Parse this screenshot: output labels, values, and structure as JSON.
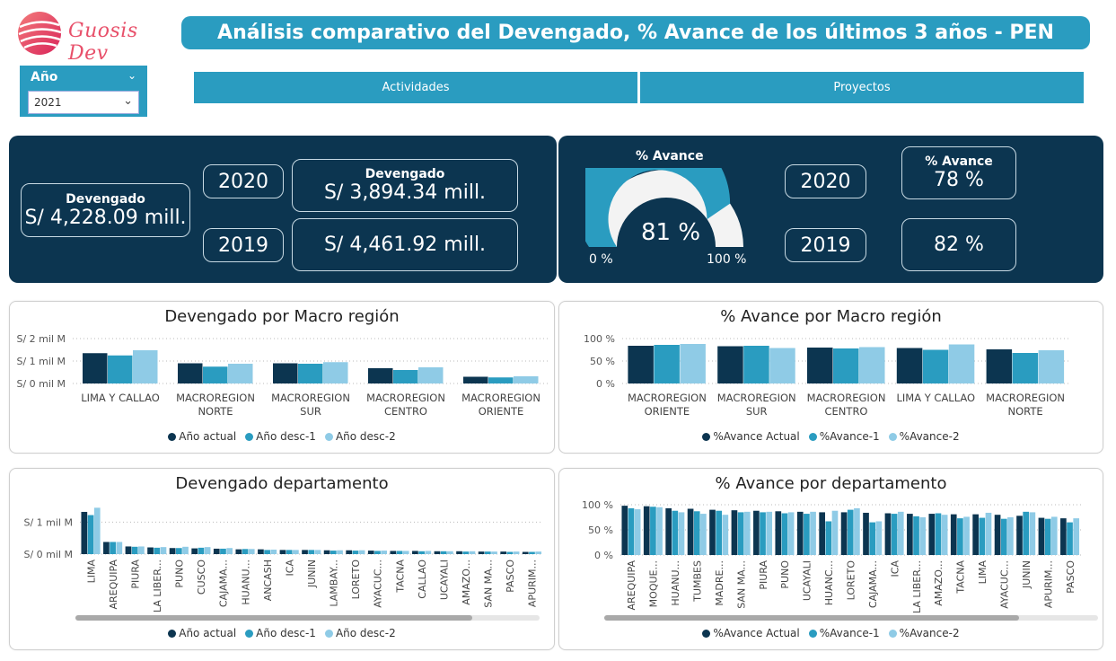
{
  "brand": {
    "name": "Guosis Dev"
  },
  "header": {
    "title": "Análisis comparativo del Devengado, % Avance de los últimos 3 años - PEN"
  },
  "slicer": {
    "label": "Año",
    "value": "2021"
  },
  "nav": {
    "actividades": "Actividades",
    "proyectos": "Proyectos"
  },
  "kpi_devengado": {
    "label": "Devengado",
    "current": "S/ 4,228.09 mill.",
    "y1_label": "2020",
    "y2_label": "2019",
    "y1_title": "Devengado",
    "y1_value": "S/ 3,894.34 mill.",
    "y2_value": "S/ 4,461.92 mill."
  },
  "kpi_avance": {
    "gauge_title": "% Avance",
    "gauge_value": "81 %",
    "gauge_fraction": 0.81,
    "gauge_min": "0 %",
    "gauge_max": "100 %",
    "y1_label": "2020",
    "y2_label": "2019",
    "y1_title": "% Avance",
    "y1_value": "78 %",
    "y2_value": "82 %"
  },
  "colors": {
    "actual": "#0c3550",
    "desc1": "#2a9cc0",
    "desc2": "#8fcbe6",
    "dark": "#0c3550",
    "accent": "#2a9cc0"
  },
  "charts": {
    "dev_macro": {
      "title": "Devengado por Macro región",
      "legend": [
        "Año actual",
        "Año desc-1",
        "Año desc-2"
      ],
      "yticks": [
        "S/ 2 mil M",
        "S/ 1 mil M",
        "S/ 0 mil M"
      ]
    },
    "av_macro": {
      "title": "% Avance por Macro región",
      "legend": [
        "%Avance Actual",
        "%Avance-1",
        "%Avance-2"
      ],
      "yticks": [
        "100 %",
        "50 %",
        "0 %"
      ]
    },
    "dev_depto": {
      "title": "Devengado departamento",
      "legend": [
        "Año actual",
        "Año desc-1",
        "Año desc-2"
      ],
      "yticks": [
        "S/ 1 mil M",
        "S/ 0 mil M"
      ]
    },
    "av_depto": {
      "title": "% Avance por departamento",
      "legend": [
        "%Avance Actual",
        "%Avance-1",
        "%Avance-2"
      ],
      "yticks": [
        "100 %",
        "50 %",
        "0 %"
      ]
    }
  },
  "chart_data": [
    {
      "type": "bar",
      "title": "Devengado por Macro región",
      "categories": [
        "LIMA Y CALLAO",
        "MACROREGION NORTE",
        "MACROREGION SUR",
        "MACROREGION CENTRO",
        "MACROREGION ORIENTE"
      ],
      "series": [
        {
          "name": "Año actual",
          "values": [
            1.35,
            0.9,
            0.9,
            0.68,
            0.3
          ]
        },
        {
          "name": "Año desc-1",
          "values": [
            1.25,
            0.75,
            0.88,
            0.6,
            0.27
          ]
        },
        {
          "name": "Año desc-2",
          "values": [
            1.48,
            0.88,
            0.95,
            0.72,
            0.32
          ]
        }
      ],
      "ylim": [
        0,
        2
      ]
    },
    {
      "type": "bar",
      "title": "% Avance por Macro región",
      "categories": [
        "MACROREGION ORIENTE",
        "MACROREGION SUR",
        "MACROREGION CENTRO",
        "LIMA Y CALLAO",
        "MACROREGION NORTE"
      ],
      "series": [
        {
          "name": "%Avance Actual",
          "values": [
            84,
            83,
            80,
            79,
            76
          ]
        },
        {
          "name": "%Avance-1",
          "values": [
            86,
            84,
            78,
            75,
            68
          ]
        },
        {
          "name": "%Avance-2",
          "values": [
            88,
            79,
            81,
            87,
            74
          ]
        }
      ],
      "ylim": [
        0,
        100
      ]
    },
    {
      "type": "bar",
      "title": "Devengado departamento",
      "categories": [
        "LIMA",
        "AREQUIPA",
        "PIURA",
        "LA LIBER...",
        "PUNO",
        "CUSCO",
        "CAJAMA...",
        "HUANU...",
        "ANCASH",
        "ICA",
        "JUNIN",
        "LAMBAY...",
        "LORETO",
        "AYACUC...",
        "TACNA",
        "CALLAO",
        "UCAYALI",
        "AMAZO...",
        "SAN MA...",
        "PASCO",
        "APURIM..."
      ],
      "series": [
        {
          "name": "Año actual",
          "values": [
            1.32,
            0.38,
            0.24,
            0.21,
            0.19,
            0.18,
            0.17,
            0.15,
            0.15,
            0.13,
            0.13,
            0.12,
            0.12,
            0.11,
            0.1,
            0.1,
            0.09,
            0.09,
            0.08,
            0.08,
            0.07
          ]
        },
        {
          "name": "Año desc-1",
          "values": [
            1.22,
            0.38,
            0.23,
            0.2,
            0.19,
            0.2,
            0.17,
            0.16,
            0.13,
            0.13,
            0.13,
            0.11,
            0.11,
            0.1,
            0.1,
            0.09,
            0.09,
            0.08,
            0.08,
            0.07,
            0.07
          ]
        },
        {
          "name": "Año desc-2",
          "values": [
            1.45,
            0.38,
            0.24,
            0.22,
            0.23,
            0.22,
            0.19,
            0.16,
            0.14,
            0.13,
            0.13,
            0.12,
            0.12,
            0.11,
            0.1,
            0.1,
            0.09,
            0.09,
            0.08,
            0.08,
            0.08
          ]
        }
      ],
      "ylim": [
        0,
        1.6
      ]
    },
    {
      "type": "bar",
      "title": "% Avance por departamento",
      "categories": [
        "AREQUIPA",
        "MOQUE...",
        "HUANU...",
        "TUMBES",
        "MADRE...",
        "SAN MA...",
        "PIURA",
        "PUNO",
        "UCAYALI",
        "HUANC...",
        "LORETO",
        "CAJAMA...",
        "ICA",
        "LA LIBER...",
        "AMAZO...",
        "TACNA",
        "LIMA",
        "AYACUC...",
        "JUNIN",
        "APURIM...",
        "PASCO"
      ],
      "series": [
        {
          "name": "%Avance Actual",
          "values": [
            98,
            97,
            93,
            92,
            90,
            89,
            88,
            87,
            86,
            85,
            85,
            84,
            83,
            82,
            82,
            81,
            81,
            80,
            78,
            74,
            73
          ]
        },
        {
          "name": "%Avance-1",
          "values": [
            93,
            96,
            88,
            87,
            88,
            85,
            85,
            83,
            82,
            67,
            90,
            65,
            82,
            77,
            83,
            73,
            74,
            72,
            86,
            72,
            65
          ]
        },
        {
          "name": "%Avance-2",
          "values": [
            91,
            95,
            85,
            82,
            80,
            86,
            86,
            85,
            86,
            88,
            93,
            67,
            86,
            75,
            80,
            76,
            84,
            75,
            85,
            76,
            73
          ]
        }
      ],
      "ylim": [
        0,
        100
      ]
    }
  ]
}
